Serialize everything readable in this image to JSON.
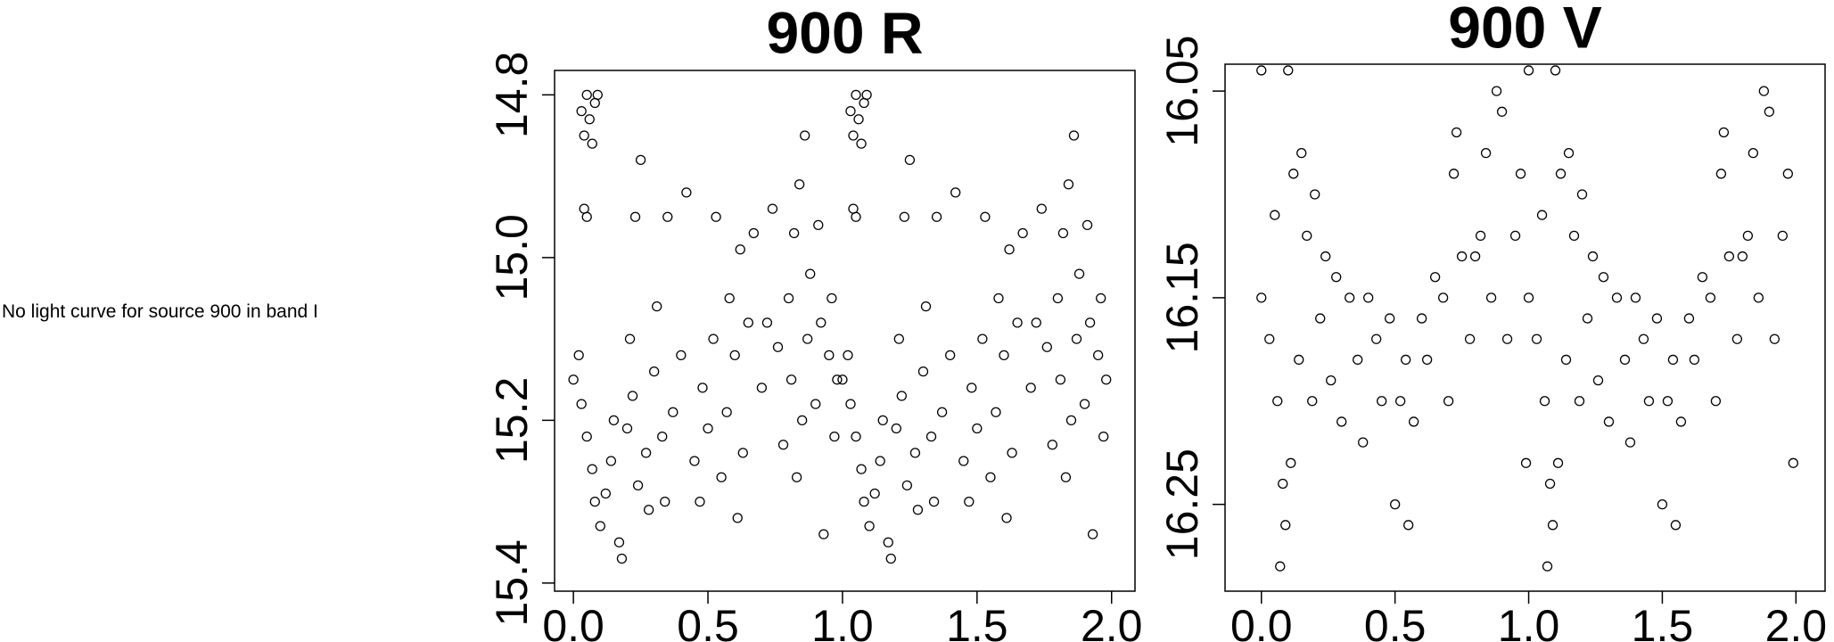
{
  "message": "No light curve for source 900 in band I",
  "chart_data": [
    {
      "type": "scatter",
      "title": "900 R",
      "xlim": [
        -0.07,
        2.087
      ],
      "ylim": [
        15.41,
        14.77
      ],
      "xticks": [
        {
          "value": 0,
          "label": "0.0"
        },
        0.5,
        {
          "value": 1,
          "label": "1.0"
        },
        1.5,
        {
          "value": 2,
          "label": "2.0"
        }
      ],
      "yticks": [
        14.8,
        {
          "value": 15,
          "label": "15.0"
        },
        15.2,
        15.4
      ],
      "color": "#000000",
      "x": [
        0.03,
        0.05,
        0.06,
        0.08,
        0.04,
        0.07,
        0.09,
        0.04,
        0.05,
        0.0,
        0.02,
        0.03,
        0.05,
        0.07,
        0.08,
        0.1,
        0.12,
        0.14,
        0.15,
        0.17,
        0.18,
        0.2,
        0.21,
        0.22,
        0.23,
        0.24,
        0.25,
        0.27,
        0.28,
        0.3,
        0.31,
        0.33,
        0.34,
        0.35,
        0.37,
        0.4,
        0.42,
        0.45,
        0.47,
        0.48,
        0.5,
        0.52,
        0.53,
        0.55,
        0.57,
        0.58,
        0.6,
        0.61,
        0.62,
        0.63,
        0.65,
        0.67,
        0.7,
        0.72,
        0.74,
        0.76,
        0.78,
        0.8,
        0.81,
        0.82,
        0.83,
        0.84,
        0.85,
        0.86,
        0.87,
        0.88,
        0.9,
        0.91,
        0.92,
        0.93,
        0.95,
        0.96,
        0.97,
        0.98,
        1.03,
        1.05,
        1.06,
        1.08,
        1.04,
        1.07,
        1.09,
        1.04,
        1.05,
        1.0,
        1.02,
        1.03,
        1.05,
        1.07,
        1.08,
        1.1,
        1.12,
        1.14,
        1.15,
        1.17,
        1.18,
        1.2,
        1.21,
        1.22,
        1.23,
        1.24,
        1.25,
        1.27,
        1.28,
        1.3,
        1.31,
        1.33,
        1.34,
        1.35,
        1.37,
        1.4,
        1.42,
        1.45,
        1.47,
        1.48,
        1.5,
        1.52,
        1.53,
        1.55,
        1.57,
        1.58,
        1.6,
        1.61,
        1.62,
        1.63,
        1.65,
        1.67,
        1.7,
        1.72,
        1.74,
        1.76,
        1.78,
        1.8,
        1.81,
        1.82,
        1.83,
        1.84,
        1.85,
        1.86,
        1.87,
        1.88,
        1.9,
        1.91,
        1.92,
        1.93,
        1.95,
        1.96,
        1.97,
        1.98
      ],
      "y": [
        14.82,
        14.8,
        14.83,
        14.81,
        14.85,
        14.86,
        14.8,
        14.94,
        14.95,
        15.15,
        15.12,
        15.18,
        15.22,
        15.26,
        15.3,
        15.33,
        15.29,
        15.25,
        15.2,
        15.35,
        15.37,
        15.21,
        15.1,
        15.17,
        14.95,
        15.28,
        14.88,
        15.24,
        15.31,
        15.14,
        15.06,
        15.22,
        15.3,
        14.95,
        15.19,
        15.12,
        14.92,
        15.25,
        15.3,
        15.16,
        15.21,
        15.1,
        14.95,
        15.27,
        15.19,
        15.05,
        15.12,
        15.32,
        14.99,
        15.24,
        15.08,
        14.97,
        15.16,
        15.08,
        14.94,
        15.11,
        15.23,
        15.05,
        15.15,
        14.97,
        15.27,
        14.91,
        15.2,
        14.85,
        15.1,
        15.02,
        15.18,
        14.96,
        15.08,
        15.34,
        15.12,
        15.05,
        15.22,
        15.15,
        14.82,
        14.8,
        14.83,
        14.81,
        14.85,
        14.86,
        14.8,
        14.94,
        14.95,
        15.15,
        15.12,
        15.18,
        15.22,
        15.26,
        15.3,
        15.33,
        15.29,
        15.25,
        15.2,
        15.35,
        15.37,
        15.21,
        15.1,
        15.17,
        14.95,
        15.28,
        14.88,
        15.24,
        15.31,
        15.14,
        15.06,
        15.22,
        15.3,
        14.95,
        15.19,
        15.12,
        14.92,
        15.25,
        15.3,
        15.16,
        15.21,
        15.1,
        14.95,
        15.27,
        15.19,
        15.05,
        15.12,
        15.32,
        14.99,
        15.24,
        15.08,
        14.97,
        15.16,
        15.08,
        14.94,
        15.11,
        15.23,
        15.05,
        15.15,
        14.97,
        15.27,
        14.91,
        15.2,
        14.85,
        15.1,
        15.02,
        15.18,
        14.96,
        15.08,
        15.34,
        15.12,
        15.05,
        15.22,
        15.15
      ]
    },
    {
      "type": "scatter",
      "title": "900 V",
      "xlim": [
        -0.136,
        2.109
      ],
      "ylim": [
        16.292,
        16.037
      ],
      "xticks": [
        {
          "value": 0,
          "label": "0.0"
        },
        0.5,
        {
          "value": 1,
          "label": "1.0"
        },
        1.5,
        {
          "value": 2,
          "label": "2.0"
        }
      ],
      "yticks": [
        16.05,
        16.15,
        16.25
      ],
      "color": "#000000",
      "x": [
        0.0,
        0.0,
        0.03,
        0.05,
        0.06,
        0.07,
        0.08,
        0.09,
        0.1,
        0.11,
        0.12,
        0.14,
        0.15,
        0.17,
        0.19,
        0.2,
        0.22,
        0.24,
        0.26,
        0.28,
        0.3,
        0.33,
        0.36,
        0.38,
        0.4,
        0.43,
        0.45,
        0.48,
        0.5,
        0.52,
        0.54,
        0.55,
        0.57,
        0.6,
        0.62,
        0.65,
        0.68,
        0.7,
        0.72,
        0.73,
        0.75,
        0.78,
        0.8,
        0.82,
        0.84,
        0.86,
        0.88,
        0.9,
        0.92,
        0.95,
        0.97,
        0.99,
        1.0,
        1.0,
        1.03,
        1.05,
        1.06,
        1.07,
        1.08,
        1.09,
        1.1,
        1.11,
        1.12,
        1.14,
        1.15,
        1.17,
        1.19,
        1.2,
        1.22,
        1.24,
        1.26,
        1.28,
        1.3,
        1.33,
        1.36,
        1.38,
        1.4,
        1.43,
        1.45,
        1.48,
        1.5,
        1.52,
        1.54,
        1.55,
        1.57,
        1.6,
        1.62,
        1.65,
        1.68,
        1.7,
        1.72,
        1.73,
        1.75,
        1.78,
        1.8,
        1.82,
        1.84,
        1.86,
        1.88,
        1.9,
        1.92,
        1.95,
        1.97,
        1.99
      ],
      "y": [
        16.04,
        16.15,
        16.17,
        16.11,
        16.2,
        16.28,
        16.24,
        16.26,
        16.04,
        16.23,
        16.09,
        16.18,
        16.08,
        16.12,
        16.2,
        16.1,
        16.16,
        16.13,
        16.19,
        16.14,
        16.21,
        16.15,
        16.18,
        16.22,
        16.15,
        16.17,
        16.2,
        16.16,
        16.25,
        16.2,
        16.18,
        16.26,
        16.21,
        16.16,
        16.18,
        16.14,
        16.15,
        16.2,
        16.09,
        16.07,
        16.13,
        16.17,
        16.13,
        16.12,
        16.08,
        16.15,
        16.05,
        16.06,
        16.17,
        16.12,
        16.09,
        16.23,
        16.04,
        16.15,
        16.17,
        16.11,
        16.2,
        16.28,
        16.24,
        16.26,
        16.04,
        16.23,
        16.09,
        16.18,
        16.08,
        16.12,
        16.2,
        16.1,
        16.16,
        16.13,
        16.19,
        16.14,
        16.21,
        16.15,
        16.18,
        16.22,
        16.15,
        16.17,
        16.2,
        16.16,
        16.25,
        16.2,
        16.18,
        16.26,
        16.21,
        16.16,
        16.18,
        16.14,
        16.15,
        16.2,
        16.09,
        16.07,
        16.13,
        16.17,
        16.13,
        16.12,
        16.08,
        16.15,
        16.05,
        16.06,
        16.17,
        16.12,
        16.09,
        16.23
      ]
    }
  ]
}
